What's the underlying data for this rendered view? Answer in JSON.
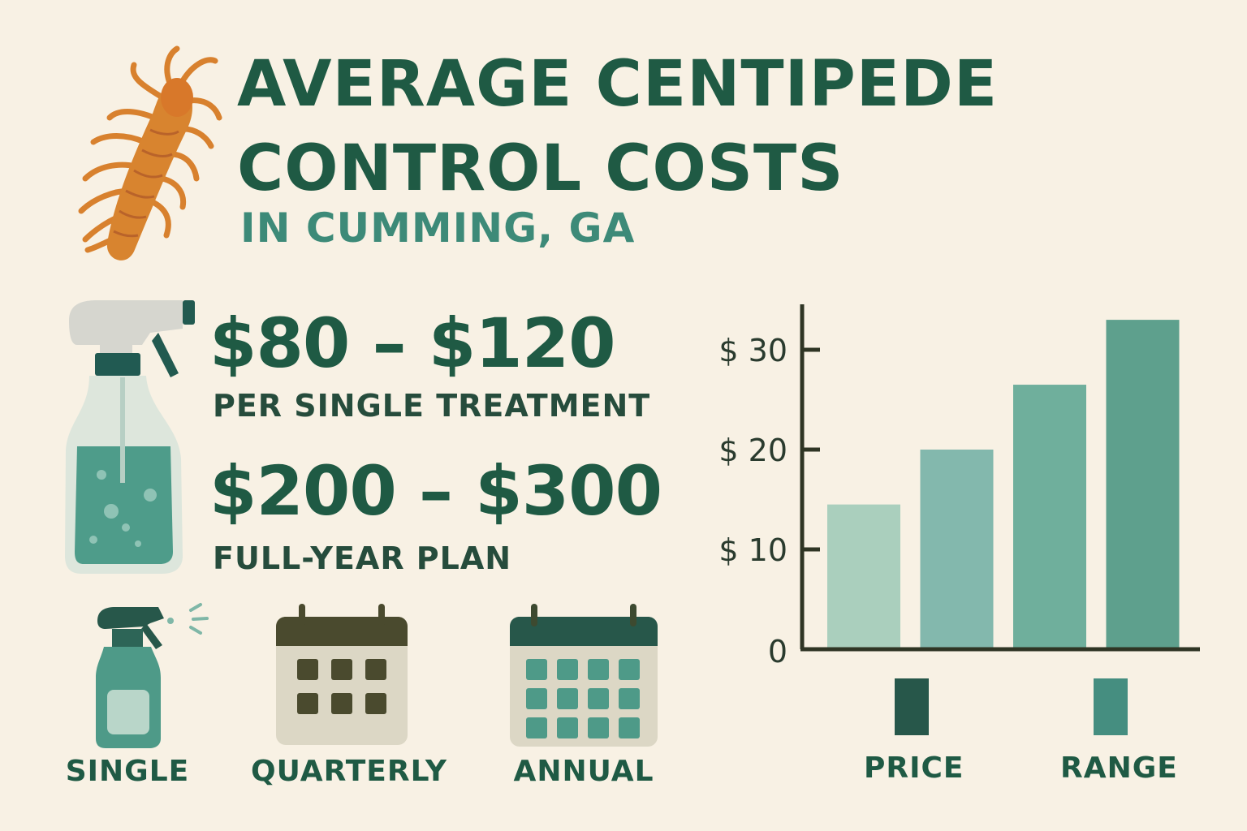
{
  "header": {
    "title_line1": "AVERAGE CENTIPEDE",
    "title_line2": "CONTROL COSTS",
    "subtitle": "IN CUMMING, GA"
  },
  "prices": [
    {
      "amount": "$80 – $120",
      "label": "PER SINGLE TREATMENT"
    },
    {
      "amount": "$200 – $300",
      "label": "FULL-YEAR PLAN"
    }
  ],
  "plans": [
    {
      "label": "SINGLE",
      "icon": "spray-bottle-icon"
    },
    {
      "label": "QUARTERLY",
      "icon": "calendar-icon"
    },
    {
      "label": "ANNUAL",
      "icon": "calendar-icon"
    }
  ],
  "legend": [
    {
      "label": "PRICE",
      "color": "#27574a"
    },
    {
      "label": "RANGE",
      "color": "#458e80"
    }
  ],
  "colors": {
    "accent": "#1f5a44",
    "subtitle": "#3d8a78",
    "background": "#f8f1e4",
    "centipede": "#d8812e"
  },
  "chart_data": {
    "type": "bar",
    "title": "",
    "xlabel": "",
    "ylabel": "",
    "categories": [
      "",
      "",
      "",
      ""
    ],
    "values": [
      14.5,
      20,
      26.5,
      33
    ],
    "ylim": [
      0,
      35
    ],
    "yticks": [
      0,
      10,
      20,
      30
    ],
    "ytick_labels": [
      "0",
      "$ 10",
      "$ 20",
      "$ 30"
    ],
    "bar_colors": [
      "#aacfbd",
      "#83b8ad",
      "#6faf9c",
      "#5ea08d"
    ],
    "grid": false
  }
}
